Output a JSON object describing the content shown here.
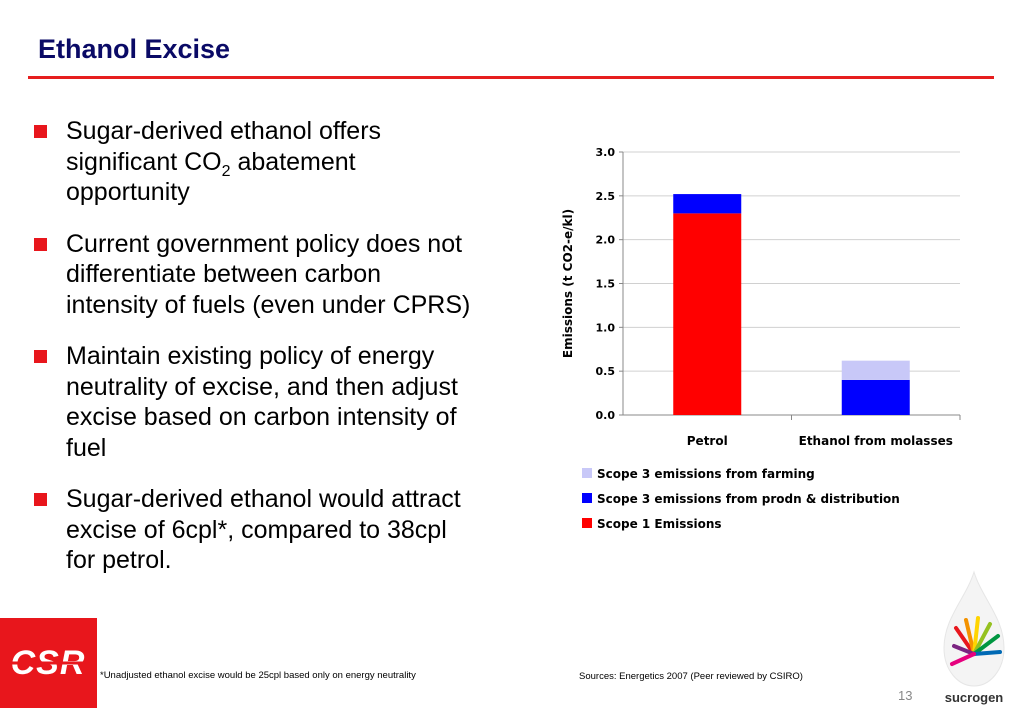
{
  "slide": {
    "title": "Ethanol Excise",
    "bullets": [
      {
        "pre": "Sugar-derived ethanol offers significant CO",
        "sub": "2",
        "post": " abatement opportunity"
      },
      {
        "text": "Current government policy does not differentiate between carbon intensity of fuels (even under CPRS)"
      },
      {
        "text": "Maintain existing policy of energy neutrality of excise, and then adjust excise based on carbon intensity of fuel"
      },
      {
        "text": "Sugar-derived ethanol would attract excise of 6cpl*, compared to 38cpl for petrol."
      }
    ],
    "footnote": "*Unadjusted ethanol excise would be 25cpl based only on energy neutrality",
    "sources": "Sources: Energetics 2007 (Peer reviewed by CSIRO)",
    "page_number": "13"
  },
  "logos": {
    "csr": {
      "text": "CSR",
      "color": "#e8161c"
    },
    "sucrogen": {
      "text": "sucrogen"
    }
  },
  "chart_data": {
    "type": "bar",
    "stacked": true,
    "categories": [
      "Petrol",
      "Ethanol from molasses"
    ],
    "series": [
      {
        "name": "Scope 1 Emissions",
        "color": "#ff0000",
        "values": [
          2.3,
          0.0
        ]
      },
      {
        "name": "Scope 3 emissions from prodn & distribution",
        "color": "#0000ff",
        "values": [
          0.22,
          0.4
        ]
      },
      {
        "name": "Scope 3 emissions from farming",
        "color": "#c8c8f8",
        "values": [
          0.0,
          0.22
        ]
      }
    ],
    "ylabel": "Emissions (t CO2-e/kl)",
    "ylim": [
      0,
      3.0
    ],
    "yticks": [
      "0.0",
      "0.5",
      "1.0",
      "1.5",
      "2.0",
      "2.5",
      "3.0"
    ],
    "grid": true,
    "legend_order": [
      "Scope 3 emissions from farming",
      "Scope 3 emissions from prodn & distribution",
      "Scope 1 Emissions"
    ],
    "legend_position": "bottom"
  }
}
